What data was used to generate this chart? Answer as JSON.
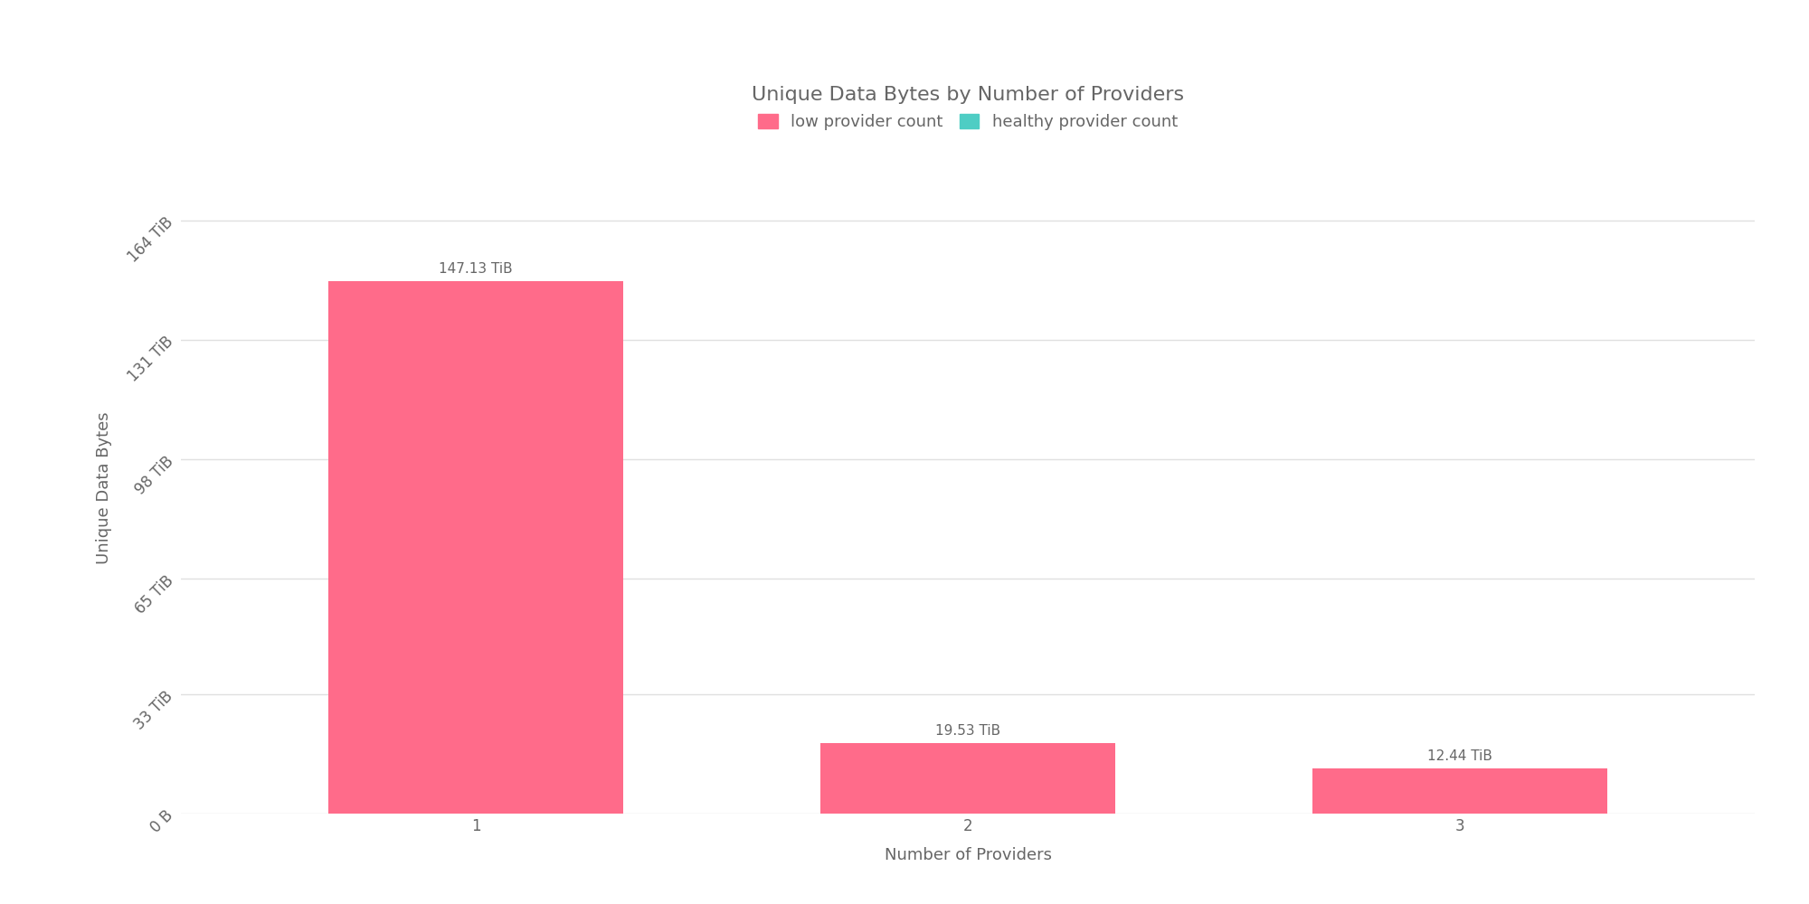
{
  "title": "Unique Data Bytes by Number of Providers",
  "xlabel": "Number of Providers",
  "ylabel": "Unique Data Bytes",
  "categories": [
    1,
    2,
    3
  ],
  "values_tib": [
    147.13,
    19.53,
    12.44
  ],
  "bar_color_low": "#FF6B8A",
  "bar_color_healthy": "#4ECDC4",
  "legend_labels": [
    "low provider count",
    "healthy provider count"
  ],
  "yticks_tib": [
    0,
    33,
    65,
    98,
    131,
    164
  ],
  "ytick_labels": [
    "0 B",
    "33 TiB",
    "65 TiB",
    "98 TiB",
    "131 TiB",
    "164 TiB"
  ],
  "bar_labels": [
    "147.13 TiB",
    "19.53 TiB",
    "12.44 TiB"
  ],
  "title_fontsize": 16,
  "label_fontsize": 13,
  "tick_fontsize": 12,
  "annotation_fontsize": 11,
  "background_color": "#ffffff",
  "grid_color": "#e0e0e0",
  "text_color": "#666666"
}
